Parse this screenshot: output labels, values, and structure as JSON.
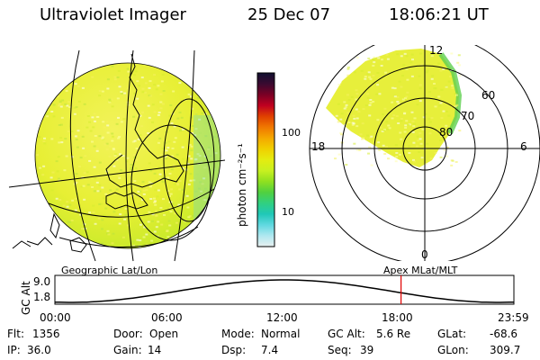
{
  "header": {
    "instrument": "Ultraviolet Imager",
    "date": "25 Dec 07",
    "time": "18:06:21 UT"
  },
  "earth_panel": {
    "caption": "Geographic Lat/Lon"
  },
  "polar_panel": {
    "caption": "Apex MLat/MLT",
    "mlt_labels": [
      "12",
      "18",
      "6",
      "0"
    ],
    "mlat_labels": [
      "60",
      "70",
      "80"
    ]
  },
  "colorbar": {
    "unit_label": "photon cm⁻²s⁻¹",
    "tick_labels": [
      "100",
      "10"
    ],
    "colors": [
      "#101030",
      "#3a0a30",
      "#7a0025",
      "#c00020",
      "#e04000",
      "#f07800",
      "#f4a800",
      "#f0d000",
      "#e4ec10",
      "#c8f020",
      "#90e020",
      "#50d040",
      "#30d080",
      "#20c8b8",
      "#60d8e0",
      "#b0e8f0",
      "#e8f0f0"
    ]
  },
  "altitude_plot": {
    "y_title": "GC Alt",
    "y_ticks": [
      "9.0",
      "1.8"
    ],
    "x_ticks": [
      "00:00",
      "06:00",
      "12:00",
      "18:00",
      "23:59"
    ],
    "marker_hour": 18.1
  },
  "info": {
    "row1": [
      {
        "label": "Flt:",
        "value": "1356"
      },
      {
        "label": "Door:",
        "value": "Open"
      },
      {
        "label": "Mode:",
        "value": "Normal"
      },
      {
        "label": "GC Alt:",
        "value": "5.6 Re"
      },
      {
        "label": "GLat:",
        "value": "-68.6"
      }
    ],
    "row2": [
      {
        "label": "IP:",
        "value": "36.0"
      },
      {
        "label": "Gain:",
        "value": "14"
      },
      {
        "label": "Dsp:",
        "value": "7.4"
      },
      {
        "label": "Seq:",
        "value": "39"
      },
      {
        "label": "GLon:",
        "value": "309.7"
      }
    ]
  },
  "colors": {
    "marker": "#e00000",
    "auroral_fill": "#e6ee30",
    "auroral_green": "#5fcf50"
  }
}
